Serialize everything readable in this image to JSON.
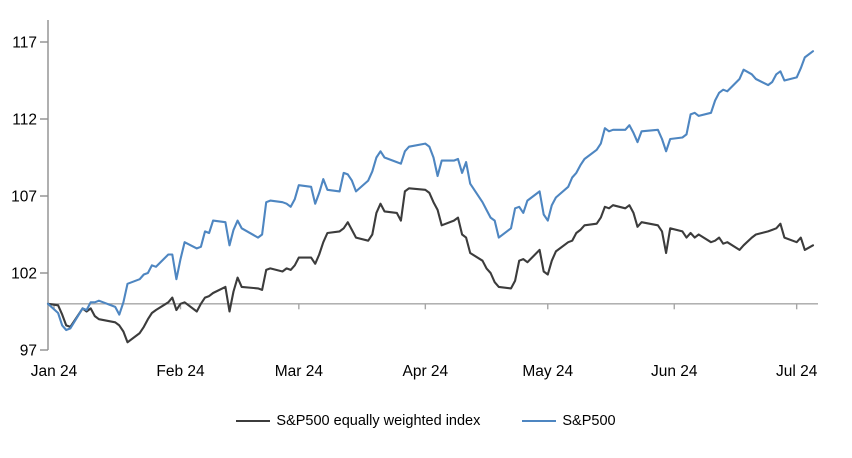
{
  "page": {
    "background": "#ffffff"
  },
  "legend": {
    "items": [
      {
        "label": "S&P500 equally weighted index",
        "color": "#3C3C3C"
      },
      {
        "label": "S&P500",
        "color": "#4E86C1"
      }
    ]
  },
  "chart_data": {
    "type": "line",
    "title": "",
    "xlabel": "",
    "ylabel": "",
    "ylim": [
      97,
      117
    ],
    "yticks": [
      97,
      102,
      107,
      112,
      117
    ],
    "baseline_value": 100,
    "grid": false,
    "legend_position": "bottom",
    "axis_color": "#8f8f8f",
    "baseline_color": "#a6a6a6",
    "x_ticks": [
      {
        "label": "Jan 24",
        "day": 0
      },
      {
        "label": "Feb 24",
        "day": 31
      },
      {
        "label": "Mar 24",
        "day": 60
      },
      {
        "label": "Apr 24",
        "day": 91
      },
      {
        "label": "May 24",
        "day": 121
      },
      {
        "label": "Jun 24",
        "day": 152
      },
      {
        "label": "Jul 24",
        "day": 182
      }
    ],
    "x_days": [
      0,
      1,
      2,
      3,
      4,
      7,
      8,
      9,
      10,
      11,
      15,
      16,
      17,
      18,
      21,
      22,
      23,
      24,
      25,
      28,
      29,
      30,
      31,
      32,
      35,
      36,
      37,
      38,
      39,
      42,
      43,
      44,
      45,
      46,
      50,
      51,
      52,
      53,
      56,
      57,
      58,
      59,
      60,
      63,
      64,
      65,
      66,
      67,
      70,
      71,
      72,
      73,
      74,
      77,
      78,
      79,
      80,
      81,
      84,
      85,
      86,
      87,
      91,
      92,
      93,
      94,
      95,
      98,
      99,
      100,
      101,
      102,
      105,
      106,
      107,
      108,
      109,
      112,
      113,
      114,
      115,
      116,
      119,
      120,
      121,
      122,
      123,
      126,
      127,
      128,
      129,
      130,
      133,
      134,
      135,
      136,
      137,
      140,
      141,
      142,
      143,
      144,
      148,
      149,
      150,
      151,
      154,
      155,
      156,
      157,
      158,
      161,
      162,
      163,
      164,
      165,
      168,
      169,
      171,
      172,
      175,
      176,
      177,
      178,
      179,
      182,
      183,
      184,
      186
    ],
    "series": [
      {
        "key": "sp500-equal-weight",
        "name": "S&P500 equally weighted index",
        "color": "#3C3C3C",
        "values": [
          100,
          99.9,
          99.3,
          98.6,
          98.5,
          99.7,
          99.5,
          99.7,
          99.2,
          99,
          98.8,
          98.6,
          98.2,
          97.5,
          98.1,
          98.5,
          99,
          99.4,
          99.6,
          100.1,
          100.4,
          99.6,
          100,
          100.1,
          99.5,
          100,
          100.4,
          100.5,
          100.7,
          101.1,
          99.5,
          100.8,
          101.7,
          101.1,
          101,
          100.9,
          102.2,
          102.3,
          102.1,
          102.3,
          102.2,
          102.5,
          103,
          103,
          102.6,
          103.2,
          104,
          104.6,
          104.7,
          104.9,
          105.3,
          104.8,
          104.3,
          104.1,
          104.5,
          105.9,
          106.5,
          106,
          105.9,
          105.4,
          107.3,
          107.5,
          107.4,
          107.2,
          106.6,
          106.1,
          105.1,
          105.4,
          105.6,
          104.5,
          104.3,
          103.3,
          102.8,
          102.3,
          102,
          101.4,
          101.1,
          101,
          101.5,
          102.8,
          102.9,
          102.7,
          103.5,
          102.1,
          101.9,
          102.8,
          103.4,
          104,
          104.1,
          104.6,
          104.8,
          105.1,
          105.2,
          105.6,
          106.3,
          106.2,
          106.4,
          106.2,
          106.4,
          105.9,
          105,
          105.3,
          105.1,
          104.7,
          103.3,
          104.9,
          104.7,
          104.3,
          104.6,
          104.3,
          104.5,
          104,
          104.1,
          104.3,
          103.9,
          104,
          103.5,
          103.8,
          104.3,
          104.5,
          104.7,
          104.8,
          104.9,
          105.2,
          104.3,
          104,
          104.3,
          103.5,
          103.8
        ]
      },
      {
        "key": "sp500",
        "name": "S&P500",
        "color": "#4E86C1",
        "values": [
          100,
          99.4,
          98.6,
          98.3,
          98.4,
          99.7,
          99.6,
          100.1,
          100.1,
          100.2,
          99.8,
          99.3,
          100.1,
          101.3,
          101.6,
          101.9,
          102,
          102.5,
          102.4,
          103.2,
          103.2,
          101.6,
          102.9,
          104,
          103.6,
          103.7,
          104.7,
          104.6,
          105.4,
          105.3,
          103.8,
          104.8,
          105.4,
          104.9,
          104.3,
          104.5,
          106.6,
          106.7,
          106.6,
          106.5,
          106.3,
          106.8,
          107.7,
          107.6,
          106.5,
          107.2,
          108.1,
          107.4,
          107.3,
          108.5,
          108.4,
          108,
          107.3,
          108,
          108.6,
          109.5,
          109.9,
          109.5,
          109.2,
          109.1,
          109.9,
          110.2,
          110.4,
          110.2,
          109.5,
          108.3,
          109.3,
          109.3,
          109.4,
          108.5,
          109.2,
          107.8,
          106.6,
          106.1,
          105.6,
          105.4,
          104.3,
          104.9,
          106.2,
          106.3,
          105.9,
          106.7,
          107.3,
          105.8,
          105.4,
          106.4,
          106.9,
          107.6,
          108.2,
          108.5,
          109,
          109.4,
          110,
          110.4,
          111.4,
          111.2,
          111.3,
          111.3,
          111.6,
          111.1,
          110.5,
          111.2,
          111.3,
          110.7,
          109.9,
          110.7,
          110.8,
          111,
          112.3,
          112.4,
          112.2,
          112.4,
          113.2,
          113.7,
          113.9,
          113.8,
          114.6,
          115.2,
          114.9,
          114.6,
          114.2,
          114.4,
          114.9,
          115.1,
          114.5,
          114.7,
          115.3,
          116,
          116.4
        ]
      }
    ]
  }
}
